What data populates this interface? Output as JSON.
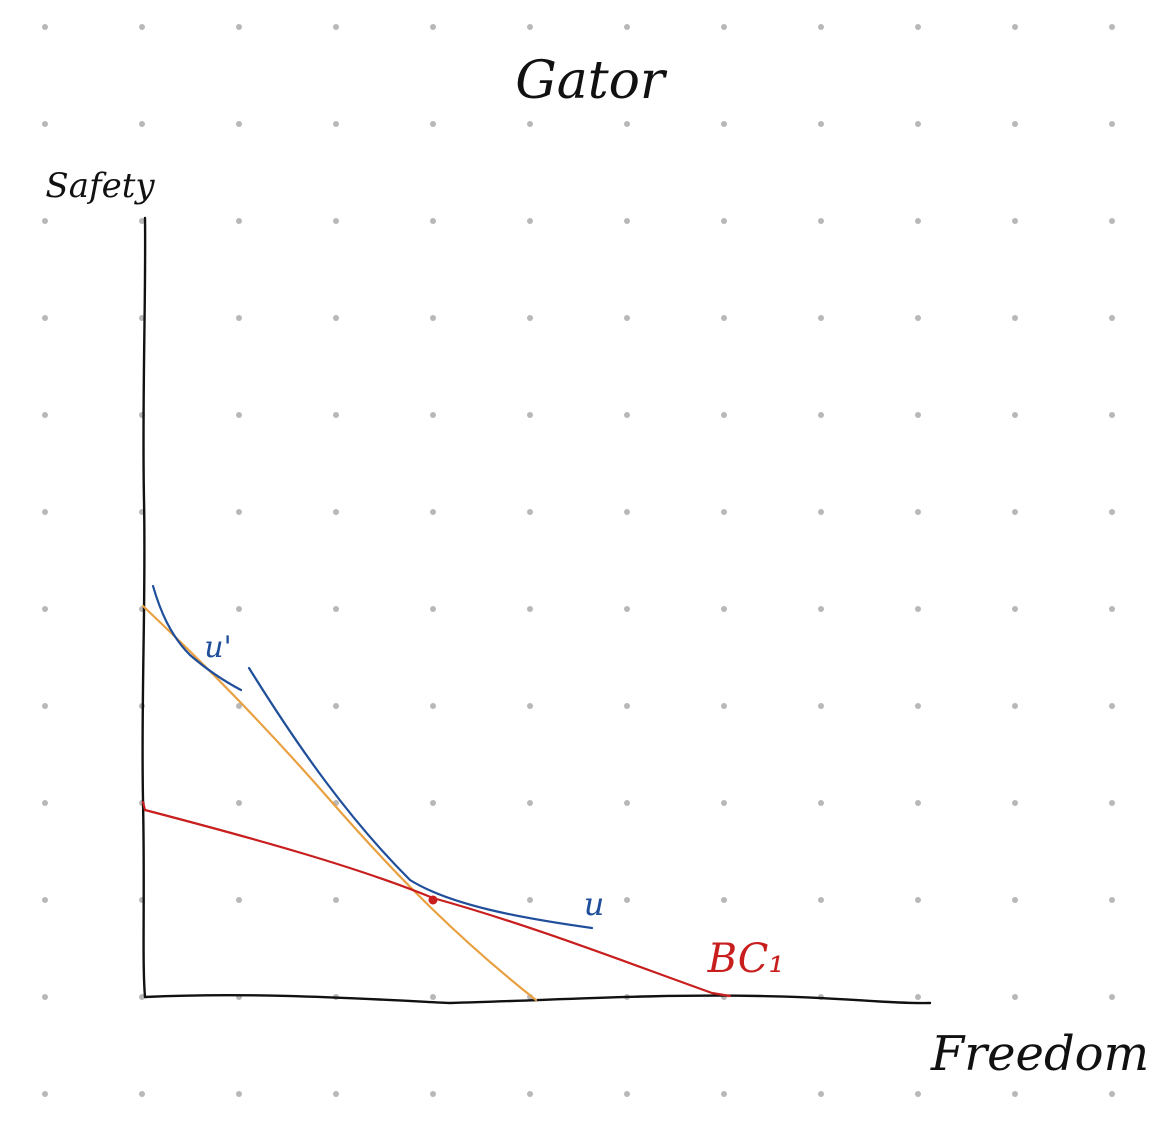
{
  "title": "Gator",
  "axes": {
    "y_label": "Safety",
    "x_label": "Freedom"
  },
  "curves": [
    {
      "id": "u_prime",
      "label": "u'",
      "color": "#1f4e9a",
      "kind": "indifference-curve"
    },
    {
      "id": "u",
      "label": "u",
      "color": "#1f4e9a",
      "kind": "indifference-curve"
    },
    {
      "id": "bc1",
      "label": "BC₁",
      "color": "#c81e1e",
      "kind": "budget-constraint"
    },
    {
      "id": "orange",
      "label": "",
      "color": "#e8a040",
      "kind": "budget-line"
    }
  ],
  "colors": {
    "ink": "#111111",
    "dot_grid": "#b8b8b8",
    "background": "#ffffff"
  }
}
